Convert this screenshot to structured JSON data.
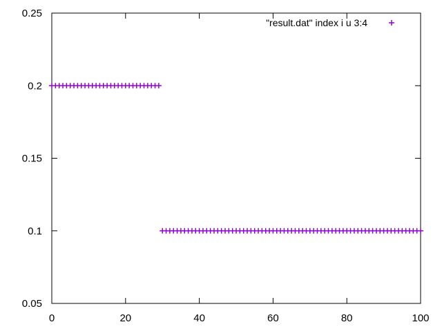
{
  "chart_data": {
    "type": "scatter",
    "xlim": [
      0,
      100
    ],
    "ylim": [
      0.05,
      0.25
    ],
    "x_ticks": [
      "0",
      "20",
      "40",
      "60",
      "80",
      "100"
    ],
    "y_ticks": [
      "0.05",
      "0.1",
      "0.15",
      "0.2",
      "0.25"
    ],
    "grid": false,
    "legend_position": "top-right",
    "series": [
      {
        "name": "\"result.dat\" index i u 3:4",
        "color": "#9400d3",
        "marker": "plus",
        "x": [
          0,
          1,
          2,
          3,
          4,
          5,
          6,
          7,
          8,
          9,
          10,
          11,
          12,
          13,
          14,
          15,
          16,
          17,
          18,
          19,
          20,
          21,
          22,
          23,
          24,
          25,
          26,
          27,
          28,
          29,
          30,
          31,
          32,
          33,
          34,
          35,
          36,
          37,
          38,
          39,
          40,
          41,
          42,
          43,
          44,
          45,
          46,
          47,
          48,
          49,
          50,
          51,
          52,
          53,
          54,
          55,
          56,
          57,
          58,
          59,
          60,
          61,
          62,
          63,
          64,
          65,
          66,
          67,
          68,
          69,
          70,
          71,
          72,
          73,
          74,
          75,
          76,
          77,
          78,
          79,
          80,
          81,
          82,
          83,
          84,
          85,
          86,
          87,
          88,
          89,
          90,
          91,
          92,
          93,
          94,
          95,
          96,
          97,
          98,
          99,
          100
        ],
        "y": [
          0.2,
          0.2,
          0.2,
          0.2,
          0.2,
          0.2,
          0.2,
          0.2,
          0.2,
          0.2,
          0.2,
          0.2,
          0.2,
          0.2,
          0.2,
          0.2,
          0.2,
          0.2,
          0.2,
          0.2,
          0.2,
          0.2,
          0.2,
          0.2,
          0.2,
          0.2,
          0.2,
          0.2,
          0.2,
          0.2,
          0.1,
          0.1,
          0.1,
          0.1,
          0.1,
          0.1,
          0.1,
          0.1,
          0.1,
          0.1,
          0.1,
          0.1,
          0.1,
          0.1,
          0.1,
          0.1,
          0.1,
          0.1,
          0.1,
          0.1,
          0.1,
          0.1,
          0.1,
          0.1,
          0.1,
          0.1,
          0.1,
          0.1,
          0.1,
          0.1,
          0.1,
          0.1,
          0.1,
          0.1,
          0.1,
          0.1,
          0.1,
          0.1,
          0.1,
          0.1,
          0.1,
          0.1,
          0.1,
          0.1,
          0.1,
          0.1,
          0.1,
          0.1,
          0.1,
          0.1,
          0.1,
          0.1,
          0.1,
          0.1,
          0.1,
          0.1,
          0.1,
          0.1,
          0.1,
          0.1,
          0.1,
          0.1,
          0.1,
          0.1,
          0.1,
          0.1,
          0.1,
          0.1,
          0.1,
          0.1,
          0.1
        ]
      }
    ]
  }
}
